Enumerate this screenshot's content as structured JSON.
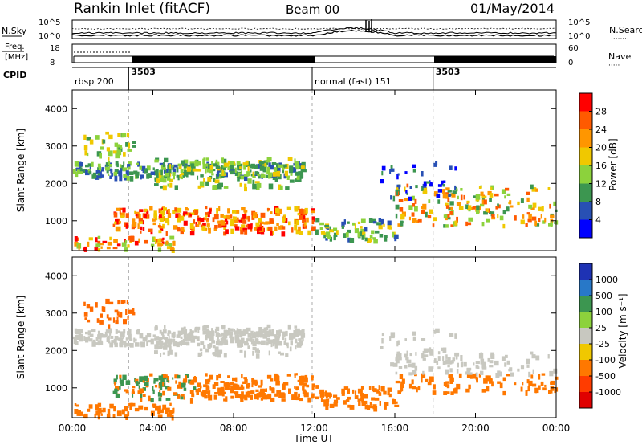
{
  "header": {
    "station": "Rankin Inlet (fitACF)",
    "beam": "Beam 00",
    "date": "01/May/2014"
  },
  "labels": {
    "nsky": "N.Sky",
    "nsearch": "N.Search",
    "freq_line1": "Freq.",
    "freq_line2": "[MHz]",
    "nave": "Nave",
    "cpid": "CPID",
    "top_left_ticks": [
      "10^5",
      "10^0"
    ],
    "top_right_ticks": [
      "10^5",
      "10^0"
    ],
    "freq_ticks": [
      "18",
      "8"
    ],
    "nave_ticks": [
      "60",
      "0"
    ],
    "nave_line": "·····",
    "nsearch_line": "········"
  },
  "cpid_segments": [
    {
      "label": "rbsp 200",
      "start": 0,
      "end": 2.8
    },
    {
      "label": "3503",
      "start": 2.8,
      "end": 11.9
    },
    {
      "label": "normal (fast) 151",
      "start": 11.9,
      "end": 17.9
    },
    {
      "label": "3503",
      "start": 17.9,
      "end": 24
    }
  ],
  "chart_data": [
    {
      "type": "heatmap",
      "name": "power",
      "ylabel": "Slant Range [km]",
      "xlabel": "Time UT",
      "x_ticks": [
        "00:00",
        "04:00",
        "08:00",
        "12:00",
        "16:00",
        "20:00",
        "00:00"
      ],
      "x_tick_hours": [
        0,
        4,
        8,
        12,
        16,
        20,
        24
      ],
      "y_ticks": [
        1000,
        2000,
        3000,
        4000
      ],
      "ylim": [
        200,
        4500
      ],
      "xlim_hours": [
        0,
        24
      ],
      "colorbar_label": "Power [dB]",
      "colorbar_ticks": [
        "28",
        "24",
        "20",
        "16",
        "12",
        "8",
        "4"
      ],
      "colorbar_colors": [
        "#ff0000",
        "#ff5a00",
        "#ff9600",
        "#f0c800",
        "#8cd23c",
        "#3c9650",
        "#2850b4",
        "#0000ff"
      ]
    },
    {
      "type": "heatmap",
      "name": "velocity",
      "ylabel": "Slant Range [km]",
      "xlabel": "Time UT",
      "x_ticks": [
        "00:00",
        "04:00",
        "08:00",
        "12:00",
        "16:00",
        "20:00",
        "00:00"
      ],
      "x_tick_hours": [
        0,
        4,
        8,
        12,
        16,
        20,
        24
      ],
      "y_ticks": [
        1000,
        2000,
        3000,
        4000
      ],
      "ylim": [
        200,
        4500
      ],
      "xlim_hours": [
        0,
        24
      ],
      "colorbar_label": "Velocity [m s⁻¹]",
      "colorbar_ticks": [
        "1000",
        "500",
        "100",
        "25",
        "-25",
        "-100",
        "-500",
        "-1000"
      ],
      "colorbar_colors": [
        "#1e32b4",
        "#2878c8",
        "#3c9650",
        "#8cd23c",
        "#c8c8c0",
        "#f0c800",
        "#ff7800",
        "#ff3c00",
        "#e00000"
      ]
    }
  ],
  "colors": {
    "power_scale": [
      "#0000ff",
      "#2850b4",
      "#3c9650",
      "#8cd23c",
      "#f0c800",
      "#ff9600",
      "#ff5a00",
      "#ff0000"
    ],
    "velocity_gray": "#c8c8c0",
    "velocity_orange": "#ff7800",
    "velocity_green": "#3c9650"
  }
}
